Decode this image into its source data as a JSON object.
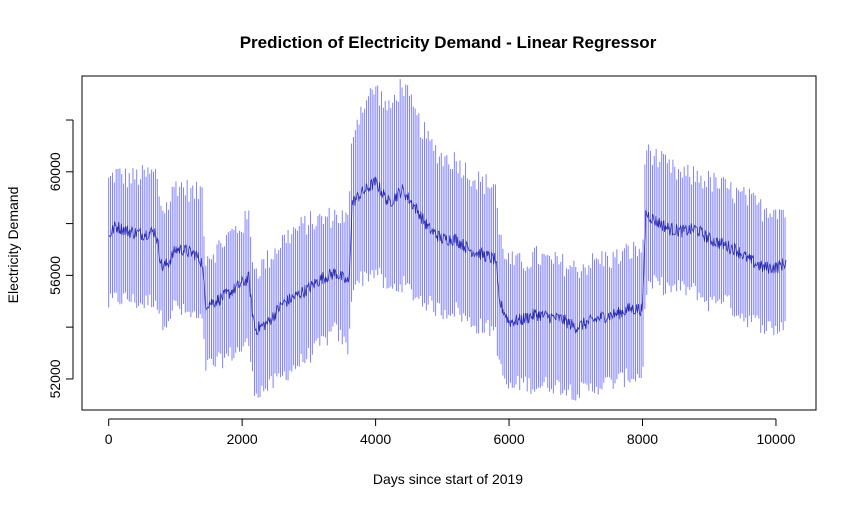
{
  "chart_data": {
    "type": "line",
    "title": "Prediction of Electricity Demand - Linear Regressor",
    "xlabel": "Days since start of 2019",
    "ylabel": "Electricity Demand",
    "xlim": [
      -400,
      10600
    ],
    "ylim": [
      50800,
      63700
    ],
    "xticks": [
      0,
      2000,
      4000,
      6000,
      8000,
      10000
    ],
    "xtick_labels": [
      "0",
      "2000",
      "4000",
      "6000",
      "8000",
      "10000"
    ],
    "yticks": [
      52000,
      54000,
      56000,
      58000,
      60000,
      62000
    ],
    "ytick_labels": [
      "52000",
      "",
      "56000",
      "",
      "60000",
      ""
    ],
    "grid": false,
    "legend": "none",
    "colors": {
      "band": "#0000ff",
      "trend": "#00008b"
    },
    "x_range": [
      0,
      10150
    ],
    "series": [
      {
        "x": [
          0,
          100,
          300,
          500,
          700,
          800,
          900,
          1000,
          1100,
          1300,
          1400,
          1450,
          1600,
          1800,
          2000,
          2100,
          2150,
          2200,
          2400,
          2600,
          2800,
          3000,
          3200,
          3400,
          3600,
          3650,
          3800,
          4000,
          4200,
          4400,
          4600,
          4800,
          5000,
          5200,
          5400,
          5600,
          5800,
          5850,
          6000,
          6200,
          6400,
          6600,
          6800,
          7000,
          7200,
          7400,
          7600,
          7800,
          8000,
          8050,
          8200,
          8400,
          8600,
          8800,
          9000,
          9200,
          9400,
          9600,
          9800,
          10000,
          10150
        ],
        "low": [
          55000,
          55200,
          55200,
          55000,
          55200,
          54300,
          54500,
          55000,
          54700,
          54500,
          54300,
          52600,
          52700,
          53000,
          53300,
          53500,
          52200,
          51600,
          51800,
          52200,
          52600,
          53000,
          53500,
          54000,
          53200,
          55800,
          56000,
          56300,
          55500,
          55800,
          55300,
          55000,
          54700,
          54800,
          54300,
          54100,
          54000,
          52600,
          51700,
          52000,
          51800,
          51900,
          51800,
          51600,
          51700,
          51900,
          52000,
          52200,
          52200,
          55600,
          55800,
          55600,
          55600,
          55500,
          55000,
          55300,
          54700,
          54400,
          54200,
          54000,
          54300
        ],
        "high": [
          59500,
          59800,
          59600,
          59700,
          59800,
          58400,
          58600,
          59400,
          59300,
          59000,
          59200,
          56600,
          56800,
          57400,
          57800,
          58100,
          56800,
          56000,
          56500,
          57200,
          57600,
          57900,
          58000,
          58200,
          58000,
          61400,
          62400,
          63100,
          62200,
          63300,
          62000,
          61000,
          60400,
          60300,
          59800,
          59400,
          59400,
          57400,
          56400,
          56300,
          56600,
          56400,
          56300,
          56100,
          56300,
          56500,
          56500,
          56800,
          56800,
          60900,
          60400,
          60000,
          59700,
          59700,
          59500,
          59300,
          59000,
          58800,
          58400,
          58500,
          58300
        ],
        "trend": [
          57500,
          57900,
          57700,
          57600,
          57700,
          56300,
          56500,
          57000,
          57000,
          56800,
          56500,
          54900,
          55000,
          55300,
          55700,
          55900,
          54600,
          53900,
          54200,
          54900,
          55200,
          55500,
          55900,
          56100,
          55700,
          58800,
          59200,
          59600,
          58800,
          59300,
          58600,
          57800,
          57400,
          57400,
          57000,
          56800,
          56600,
          55000,
          54200,
          54300,
          54500,
          54400,
          54300,
          54000,
          54200,
          54400,
          54500,
          54700,
          54700,
          58400,
          58100,
          57800,
          57700,
          57800,
          57400,
          57200,
          57000,
          56600,
          56300,
          56300,
          56500
        ]
      }
    ]
  }
}
